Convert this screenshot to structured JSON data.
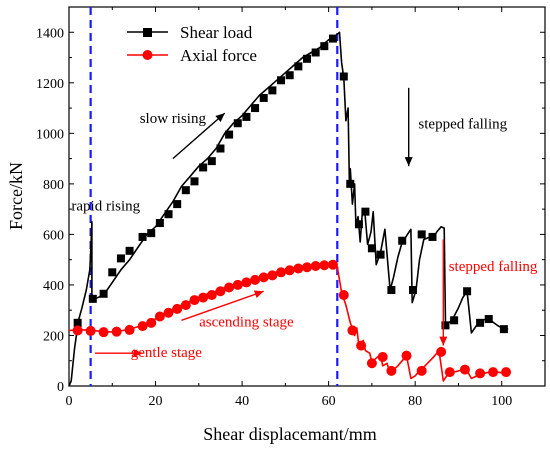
{
  "chart_data": {
    "type": "line",
    "xlabel": "Shear displacemant/mm",
    "ylabel": "Force/kN",
    "xlim": [
      0,
      110
    ],
    "ylim": [
      0,
      1500
    ],
    "xticks": [
      0,
      20,
      40,
      60,
      80,
      100
    ],
    "yticks": [
      0,
      200,
      400,
      600,
      800,
      1000,
      1200,
      1400
    ],
    "grid": false,
    "legend_position": "top-left",
    "series": [
      {
        "name": "Shear load",
        "color": "#000000",
        "marker": "square",
        "line": [
          [
            0,
            0
          ],
          [
            0.5,
            20
          ],
          [
            1.3,
            150
          ],
          [
            2.2,
            260
          ],
          [
            3,
            310
          ],
          [
            4,
            380
          ],
          [
            4.8,
            460
          ],
          [
            5,
            520
          ],
          [
            5.3,
            650
          ],
          [
            5.3,
            350
          ],
          [
            6,
            345
          ],
          [
            8,
            360
          ],
          [
            10,
            410
          ],
          [
            12,
            460
          ],
          [
            14,
            500
          ],
          [
            16,
            550
          ],
          [
            18,
            600
          ],
          [
            20,
            630
          ],
          [
            22,
            680
          ],
          [
            24,
            730
          ],
          [
            26,
            790
          ],
          [
            28,
            830
          ],
          [
            30,
            870
          ],
          [
            32,
            900
          ],
          [
            34,
            940
          ],
          [
            36,
            1000
          ],
          [
            38,
            1040
          ],
          [
            40,
            1070
          ],
          [
            42,
            1110
          ],
          [
            44,
            1150
          ],
          [
            46,
            1180
          ],
          [
            48,
            1210
          ],
          [
            50,
            1240
          ],
          [
            52,
            1270
          ],
          [
            54,
            1300
          ],
          [
            56,
            1320
          ],
          [
            58,
            1340
          ],
          [
            60,
            1370
          ],
          [
            61.5,
            1385
          ],
          [
            62.5,
            1400
          ],
          [
            63,
            1280
          ],
          [
            63.5,
            1220
          ],
          [
            64,
            1050
          ],
          [
            64.5,
            1100
          ],
          [
            64.8,
            800
          ],
          [
            65,
            860
          ],
          [
            65.5,
            720
          ],
          [
            66,
            800
          ],
          [
            66.3,
            640
          ],
          [
            66.8,
            670
          ],
          [
            67.3,
            570
          ],
          [
            67.8,
            690
          ],
          [
            68.3,
            700
          ],
          [
            69,
            560
          ],
          [
            69.8,
            610
          ],
          [
            70.3,
            690
          ],
          [
            71,
            480
          ],
          [
            72,
            530
          ],
          [
            73,
            620
          ],
          [
            74.2,
            380
          ],
          [
            75,
            430
          ],
          [
            76,
            510
          ],
          [
            77,
            570
          ],
          [
            77.5,
            580
          ],
          [
            78.2,
            600
          ],
          [
            79,
            620
          ],
          [
            79.3,
            330
          ],
          [
            80.2,
            380
          ],
          [
            81,
            500
          ],
          [
            82,
            580
          ],
          [
            83.5,
            590
          ],
          [
            84,
            580
          ],
          [
            85,
            610
          ],
          [
            86,
            630
          ],
          [
            86.7,
            625
          ],
          [
            87,
            240
          ],
          [
            88.5,
            260
          ],
          [
            90,
            310
          ],
          [
            91,
            350
          ],
          [
            92,
            375
          ],
          [
            93,
            210
          ],
          [
            95,
            260
          ],
          [
            97,
            265
          ],
          [
            99,
            240
          ],
          [
            100.5,
            225
          ],
          [
            101.5,
            225
          ]
        ],
        "markers": [
          [
            2,
            250
          ],
          [
            5.5,
            345
          ],
          [
            8,
            365
          ],
          [
            10,
            450
          ],
          [
            12,
            505
          ],
          [
            14,
            535
          ],
          [
            17,
            590
          ],
          [
            19,
            605
          ],
          [
            21,
            645
          ],
          [
            23,
            680
          ],
          [
            25,
            720
          ],
          [
            27,
            775
          ],
          [
            29,
            810
          ],
          [
            31,
            865
          ],
          [
            33,
            890
          ],
          [
            35,
            940
          ],
          [
            37,
            995
          ],
          [
            39,
            1040
          ],
          [
            41,
            1065
          ],
          [
            43,
            1100
          ],
          [
            45,
            1140
          ],
          [
            47,
            1170
          ],
          [
            49,
            1210
          ],
          [
            51,
            1230
          ],
          [
            53,
            1265
          ],
          [
            55,
            1295
          ],
          [
            57,
            1320
          ],
          [
            59,
            1345
          ],
          [
            61,
            1375
          ],
          [
            63.5,
            1225
          ],
          [
            65,
            800
          ],
          [
            67,
            640
          ],
          [
            68.5,
            690
          ],
          [
            70,
            545
          ],
          [
            72,
            520
          ],
          [
            74.5,
            380
          ],
          [
            77,
            575
          ],
          [
            79.5,
            380
          ],
          [
            81.5,
            600
          ],
          [
            84,
            590
          ],
          [
            87,
            240
          ],
          [
            89,
            260
          ],
          [
            92,
            375
          ],
          [
            95,
            250
          ],
          [
            97,
            265
          ],
          [
            100.5,
            225
          ]
        ]
      },
      {
        "name": "Axial force",
        "color": "#ff0000",
        "marker": "circle",
        "line": [
          [
            0,
            220
          ],
          [
            2,
            222
          ],
          [
            4,
            222
          ],
          [
            6,
            219
          ],
          [
            8,
            215
          ],
          [
            10,
            214
          ],
          [
            12,
            218
          ],
          [
            14,
            225
          ],
          [
            16,
            235
          ],
          [
            18,
            250
          ],
          [
            20,
            265
          ],
          [
            22,
            285
          ],
          [
            24,
            305
          ],
          [
            26,
            320
          ],
          [
            28,
            335
          ],
          [
            30,
            350
          ],
          [
            32,
            365
          ],
          [
            34,
            375
          ],
          [
            36,
            390
          ],
          [
            38,
            400
          ],
          [
            40,
            410
          ],
          [
            42,
            420
          ],
          [
            44,
            430
          ],
          [
            46,
            440
          ],
          [
            48,
            450
          ],
          [
            50,
            460
          ],
          [
            52,
            465
          ],
          [
            54,
            470
          ],
          [
            56,
            475
          ],
          [
            58,
            478
          ],
          [
            60,
            482
          ],
          [
            61.5,
            485
          ],
          [
            62,
            470
          ],
          [
            62.5,
            420
          ],
          [
            63,
            370
          ],
          [
            64,
            320
          ],
          [
            65,
            250
          ],
          [
            66,
            200
          ],
          [
            66.5,
            230
          ],
          [
            67,
            160
          ],
          [
            68,
            180
          ],
          [
            68.5,
            140
          ],
          [
            69.5,
            130
          ],
          [
            70,
            95
          ],
          [
            71,
            110
          ],
          [
            72,
            125
          ],
          [
            72.5,
            80
          ],
          [
            73.5,
            90
          ],
          [
            74,
            60
          ],
          [
            75,
            65
          ],
          [
            76,
            80
          ],
          [
            77,
            100
          ],
          [
            78,
            120
          ],
          [
            79,
            30
          ],
          [
            80,
            40
          ],
          [
            81,
            60
          ],
          [
            82,
            75
          ],
          [
            84,
            110
          ],
          [
            85.5,
            140
          ],
          [
            86.5,
            20
          ],
          [
            87.5,
            45
          ],
          [
            89,
            55
          ],
          [
            91,
            65
          ],
          [
            92,
            60
          ],
          [
            93,
            30
          ],
          [
            95,
            45
          ],
          [
            97,
            55
          ],
          [
            99,
            55
          ],
          [
            101,
            50
          ]
        ],
        "markers": [
          [
            2,
            220
          ],
          [
            5,
            218
          ],
          [
            8,
            213
          ],
          [
            11,
            215
          ],
          [
            14,
            222
          ],
          [
            17,
            237
          ],
          [
            19,
            250
          ],
          [
            21,
            275
          ],
          [
            23,
            290
          ],
          [
            25,
            305
          ],
          [
            27,
            320
          ],
          [
            29,
            340
          ],
          [
            31,
            350
          ],
          [
            33,
            360
          ],
          [
            35,
            375
          ],
          [
            37,
            390
          ],
          [
            39,
            400
          ],
          [
            41,
            410
          ],
          [
            43,
            420
          ],
          [
            45,
            430
          ],
          [
            47,
            438
          ],
          [
            49,
            450
          ],
          [
            51,
            458
          ],
          [
            53,
            465
          ],
          [
            55,
            470
          ],
          [
            57,
            475
          ],
          [
            59,
            478
          ],
          [
            61,
            480
          ],
          [
            63.5,
            360
          ],
          [
            65.5,
            220
          ],
          [
            67.5,
            160
          ],
          [
            70,
            90
          ],
          [
            72.5,
            115
          ],
          [
            74.5,
            60
          ],
          [
            78,
            120
          ],
          [
            81.5,
            60
          ],
          [
            86,
            135
          ],
          [
            88,
            55
          ],
          [
            91.5,
            65
          ],
          [
            95,
            50
          ],
          [
            98,
            55
          ],
          [
            101,
            55
          ]
        ]
      }
    ],
    "vlines": [
      5,
      62
    ],
    "annotations": [
      {
        "text": "rapid rising",
        "color": "#000000",
        "x": 8.5,
        "y": 695
      },
      {
        "text": "slow rising",
        "color": "#000000",
        "x": 24,
        "y": 1040
      },
      {
        "text": "stepped falling",
        "color": "#000000",
        "x": 91,
        "y": 1020
      },
      {
        "text": "stepped falling",
        "color": "#ff0000",
        "x": 98,
        "y": 455
      },
      {
        "text": "ascending stage",
        "color": "#ff0000",
        "x": 41,
        "y": 235
      },
      {
        "text": "gentle stage",
        "color": "#ff0000",
        "x": 22.5,
        "y": 115
      }
    ],
    "arrows": [
      {
        "color": "#000000",
        "from": [
          24,
          900
        ],
        "to": [
          36,
          1080
        ]
      },
      {
        "color": "#000000",
        "from": [
          78.5,
          1180
        ],
        "to": [
          78.5,
          870
        ]
      },
      {
        "color": "#ff0000",
        "from": [
          86.5,
          580
        ],
        "to": [
          86.5,
          160
        ]
      },
      {
        "color": "#ff0000",
        "from": [
          26,
          260
        ],
        "to": [
          45,
          375
        ]
      },
      {
        "color": "#ff0000",
        "from": [
          6,
          130
        ],
        "to": [
          17,
          130
        ]
      }
    ]
  }
}
